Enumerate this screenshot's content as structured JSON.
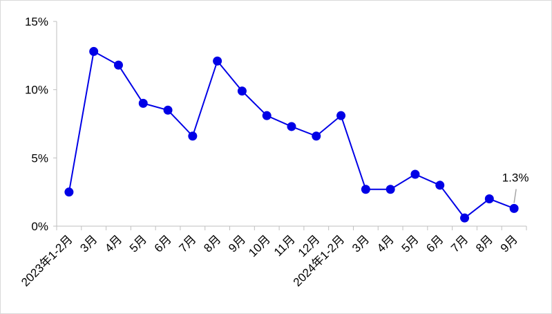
{
  "chart_data": {
    "type": "line",
    "categories": [
      "2023年1-2月",
      "3月",
      "4月",
      "5月",
      "6月",
      "7月",
      "8月",
      "9月",
      "10月",
      "11月",
      "12月",
      "2024年1-2月",
      "3月",
      "4月",
      "5月",
      "6月",
      "7月",
      "8月",
      "9月"
    ],
    "series": [
      {
        "color": "#0000e6",
        "values": [
          2.5,
          12.8,
          11.8,
          9.0,
          8.5,
          6.6,
          12.1,
          9.9,
          8.1,
          7.3,
          6.6,
          8.1,
          2.7,
          2.7,
          3.8,
          3.0,
          0.6,
          2.0,
          1.3
        ],
        "value_labels": [
          null,
          null,
          null,
          null,
          null,
          null,
          null,
          null,
          null,
          null,
          null,
          null,
          null,
          null,
          null,
          null,
          null,
          null,
          "1.3%"
        ]
      }
    ],
    "ylim": [
      0,
      15
    ],
    "yticks": [
      {
        "value": 0,
        "label": "0%"
      },
      {
        "value": 5,
        "label": "5%"
      },
      {
        "value": 10,
        "label": "10%"
      },
      {
        "value": 15,
        "label": "15%"
      }
    ],
    "grid": false
  }
}
